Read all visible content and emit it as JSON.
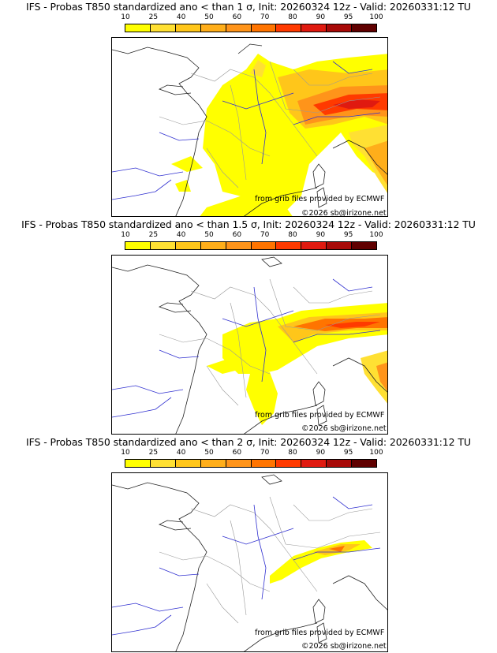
{
  "colorbar": {
    "ticks": [
      "10",
      "25",
      "40",
      "50",
      "60",
      "70",
      "80",
      "90",
      "95",
      "100"
    ],
    "colors": [
      "#ffff00",
      "#ffe033",
      "#ffc61a",
      "#ffae1a",
      "#ff941a",
      "#ff7400",
      "#ff3a00",
      "#e01a10",
      "#a80a08",
      "#600000"
    ]
  },
  "credits": {
    "source": "from grib files provided by ECMWF",
    "copyright": "©2026 sb@irizone.net"
  },
  "panels": [
    {
      "title": "IFS - Probas T850  standardized ano < than 1 σ, Init: 20260324 12z - Valid: 20260331:12 TU"
    },
    {
      "title": "IFS - Probas T850  standardized ano < than 1.5 σ, Init: 20260324 12z - Valid: 20260331:12 TU"
    },
    {
      "title": "IFS - Probas T850  standardized ano < than 2 σ, Init: 20260324 12z - Valid: 20260331:12 TU"
    }
  ]
}
